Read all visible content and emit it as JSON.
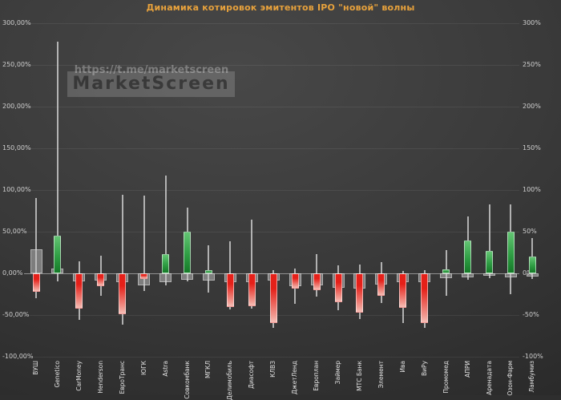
{
  "title": "Динамика котировок эмитентов IPO \"новой\" волны",
  "watermark": {
    "url": "https://t.me/marketscreen",
    "brand": "MarketScreen"
  },
  "colors": {
    "title": "#e8a23c",
    "up_candle": "#2f9e44",
    "down_candle": "#e52019",
    "down_candle_fade": "#f6beb6",
    "neutral_candle": "#c4c4c4",
    "background": "#3a3a3a"
  },
  "axis": {
    "left_labels": [
      "300,00%",
      "250,00%",
      "200,00%",
      "150,00%",
      "100,00%",
      "50,00%",
      "0,00%",
      "-50,00%",
      "-100,00%"
    ],
    "right_labels": [
      "300%",
      "250%",
      "200%",
      "150%",
      "100%",
      "50%",
      "0%",
      "-50%",
      "-100%"
    ],
    "values": [
      300,
      250,
      200,
      150,
      100,
      50,
      0,
      -50,
      -100
    ]
  },
  "chart_data": {
    "type": "bar",
    "subtype": "candlestick-range-bars",
    "title": "Динамика котировок эмитентов IPO \"новой\" волны",
    "ylabel": "%",
    "ylim": [
      -100,
      300
    ],
    "grid": true,
    "legend": "none",
    "note": "Each issuer: grey bar = secondary change vs IPO price, colored bar = current change vs IPO price (green up / red down), thin wick = historical high/low range, all in percent",
    "series": [
      {
        "name": "ВУШ",
        "grey": 29,
        "value": -22,
        "high": 90,
        "low": -30
      },
      {
        "name": "Genetico",
        "grey": 6,
        "value": 45,
        "high": 278,
        "low": -10
      },
      {
        "name": "CarMoney",
        "grey": -10,
        "value": -42,
        "high": 14,
        "low": -56
      },
      {
        "name": "Henderson",
        "grey": -9,
        "value": -15,
        "high": 21,
        "low": -27
      },
      {
        "name": "ЕвроТранс",
        "grey": -11,
        "value": -49,
        "high": 94,
        "low": -62
      },
      {
        "name": "ЮГК",
        "grey": -14,
        "value": -7,
        "high": 93,
        "low": -21
      },
      {
        "name": "Astra",
        "grey": -11,
        "value": 23,
        "high": 117,
        "low": -14
      },
      {
        "name": "Совкомбанк",
        "grey": -8,
        "value": 50,
        "high": 79,
        "low": -10
      },
      {
        "name": "МГКЛ",
        "grey": -9,
        "value": 4,
        "high": 34,
        "low": -23
      },
      {
        "name": "Делимобиль",
        "grey": -11,
        "value": -40,
        "high": 38,
        "low": -43
      },
      {
        "name": "Диасофт",
        "grey": -11,
        "value": -39,
        "high": 64,
        "low": -42
      },
      {
        "name": "КЛВЗ",
        "grey": -9,
        "value": -60,
        "high": 4,
        "low": -65
      },
      {
        "name": "ДжетЛенд",
        "grey": -15,
        "value": -18,
        "high": 6,
        "low": -37
      },
      {
        "name": "Европлан",
        "grey": -14,
        "value": -20,
        "high": 23,
        "low": -28
      },
      {
        "name": "Займер",
        "grey": -17,
        "value": -35,
        "high": 10,
        "low": -44
      },
      {
        "name": "МТС Банк",
        "grey": -18,
        "value": -47,
        "high": 11,
        "low": -55
      },
      {
        "name": "Элемент",
        "grey": -13,
        "value": -27,
        "high": 13,
        "low": -36
      },
      {
        "name": "Ива",
        "grey": -11,
        "value": -41,
        "high": 3,
        "low": -60
      },
      {
        "name": "ВиРу",
        "grey": -11,
        "value": -60,
        "high": 4,
        "low": -65
      },
      {
        "name": "Промомед",
        "grey": -6,
        "value": 5,
        "high": 28,
        "low": -27
      },
      {
        "name": "АПРИ",
        "grey": -5,
        "value": 39,
        "high": 68,
        "low": -8
      },
      {
        "name": "Аренадата",
        "grey": -3,
        "value": 27,
        "high": 83,
        "low": -6
      },
      {
        "name": "Озон-Фарм",
        "grey": -5,
        "value": 50,
        "high": 83,
        "low": -25
      },
      {
        "name": "Ламбумиз",
        "grey": -4,
        "value": 20,
        "high": 42,
        "low": -7
      }
    ]
  }
}
